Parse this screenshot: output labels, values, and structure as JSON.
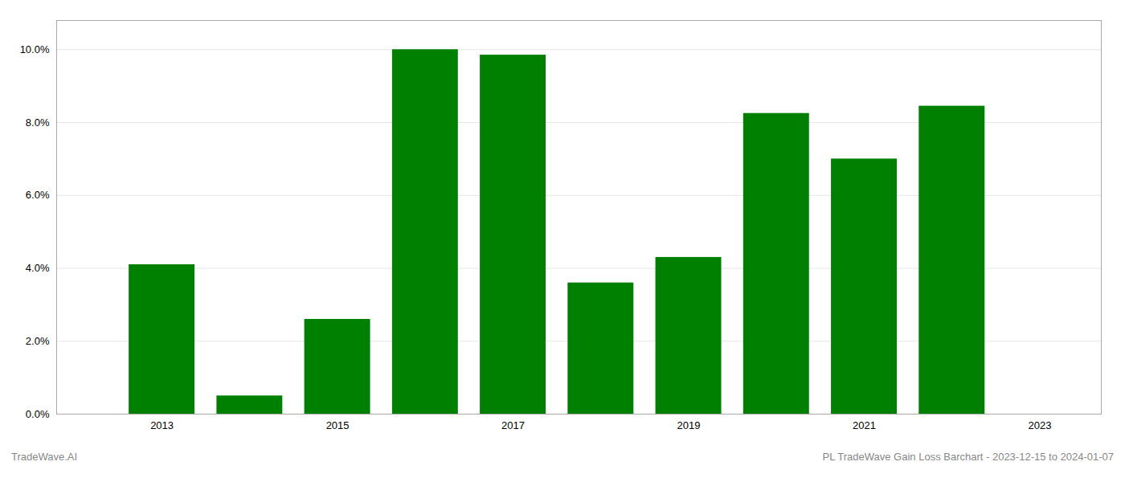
{
  "chart_data": {
    "type": "bar",
    "x": [
      2013,
      2014,
      2015,
      2016,
      2017,
      2018,
      2019,
      2020,
      2021,
      2022
    ],
    "values": [
      0.041,
      0.005,
      0.026,
      0.1,
      0.0985,
      0.036,
      0.043,
      0.0825,
      0.07,
      0.0845
    ],
    "color": "#008000",
    "xlim": [
      2011.8,
      2023.7
    ],
    "xticks": [
      2013,
      2015,
      2017,
      2019,
      2021,
      2023
    ],
    "ylim": [
      0,
      0.108
    ],
    "yticks": [
      {
        "value": 0.0,
        "label": "0.0%"
      },
      {
        "value": 0.02,
        "label": "2.0%"
      },
      {
        "value": 0.04,
        "label": "4.0%"
      },
      {
        "value": 0.06,
        "label": "6.0%"
      },
      {
        "value": 0.08,
        "label": "8.0%"
      },
      {
        "value": 0.1,
        "label": "10.0%"
      }
    ],
    "grid": true,
    "annotations": [
      "TradeWave.AI",
      "PL TradeWave Gain Loss Barchart - 2023-12-15 to 2024-01-07"
    ]
  }
}
